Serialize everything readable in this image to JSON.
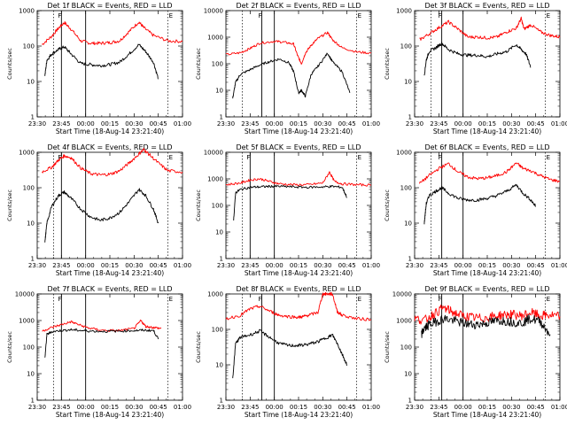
{
  "common": {
    "xlabel": "Start Time (18-Aug-14 23:21:40)",
    "ylabel": "Counts/sec",
    "title_suffix": "BLACK = Events, RED = LLD",
    "colors": {
      "events": "#000000",
      "lld": "#ff0000"
    },
    "marker_labels": [
      "F",
      "E"
    ]
  },
  "chart_data": [
    {
      "type": "line",
      "title": "Det 1f BLACK = Events, RED = LLD",
      "xlabel": "Start Time (18-Aug-14 23:21:40)",
      "ylabel": "Counts/sec",
      "yscale": "log",
      "ylim": [
        1,
        1000
      ],
      "xlim": [
        23.5,
        25.0
      ],
      "xticks": [
        "23:30",
        "23:45",
        "00:00",
        "00:15",
        "00:30",
        "00:45",
        "01:00"
      ],
      "yticks": [
        "1",
        "10",
        "100",
        "1000"
      ],
      "markers": {
        "solid": [
          23.75,
          24.0
        ],
        "dotted": [
          23.67,
          24.85
        ]
      },
      "series": [
        {
          "name": "LLD",
          "color": "#ff0000",
          "x": [
            23.55,
            23.65,
            23.72,
            23.78,
            23.85,
            23.95,
            24.05,
            24.15,
            24.25,
            24.35,
            24.45,
            24.55,
            24.6,
            24.7,
            24.85,
            25.0
          ],
          "y": [
            110,
            190,
            320,
            460,
            300,
            140,
            120,
            120,
            125,
            140,
            260,
            480,
            330,
            200,
            140,
            135
          ]
        },
        {
          "name": "Events",
          "color": "#000000",
          "x": [
            23.58,
            23.6,
            23.65,
            23.72,
            23.78,
            23.85,
            23.95,
            24.05,
            24.15,
            24.25,
            24.35,
            24.45,
            24.55,
            24.62,
            24.7,
            24.75
          ],
          "y": [
            15,
            40,
            60,
            80,
            95,
            60,
            32,
            30,
            28,
            30,
            35,
            60,
            110,
            70,
            35,
            12
          ]
        }
      ]
    },
    {
      "type": "line",
      "title": "Det 2f BLACK = Events, RED = LLD",
      "xlabel": "Start Time (18-Aug-14 23:21:40)",
      "ylabel": "Counts/sec",
      "yscale": "log",
      "ylim": [
        1,
        10000
      ],
      "xlim": [
        23.5,
        25.0
      ],
      "xticks": [
        "23:30",
        "23:45",
        "00:00",
        "00:15",
        "00:30",
        "00:45",
        "01:00"
      ],
      "yticks": [
        "1",
        "10",
        "100",
        "1000",
        "10000"
      ],
      "markers": {
        "solid": [
          23.87,
          24.0
        ],
        "dotted": [
          23.67,
          24.85
        ]
      },
      "series": [
        {
          "name": "LLD",
          "color": "#ff0000",
          "x": [
            23.5,
            23.65,
            23.75,
            23.85,
            24.0,
            24.1,
            24.2,
            24.24,
            24.28,
            24.32,
            24.38,
            24.45,
            24.55,
            24.6,
            24.7,
            24.85,
            25.0
          ],
          "y": [
            220,
            260,
            380,
            600,
            700,
            650,
            550,
            200,
            100,
            250,
            500,
            900,
            1500,
            800,
            400,
            280,
            250
          ]
        },
        {
          "name": "Events",
          "color": "#000000",
          "x": [
            23.57,
            23.6,
            23.65,
            23.75,
            23.85,
            23.95,
            24.05,
            24.15,
            24.2,
            24.25,
            24.28,
            24.32,
            24.38,
            24.45,
            24.55,
            24.6,
            24.7,
            24.78
          ],
          "y": [
            5,
            20,
            40,
            60,
            90,
            120,
            150,
            110,
            50,
            8,
            10,
            6,
            40,
            80,
            250,
            120,
            50,
            8
          ]
        }
      ]
    },
    {
      "type": "line",
      "title": "Det 3f BLACK = Events, RED = LLD",
      "xlabel": "Start Time (18-Aug-14 23:21:40)",
      "ylabel": "Counts/sec",
      "yscale": "log",
      "ylim": [
        1,
        1000
      ],
      "xlim": [
        23.5,
        25.0
      ],
      "xticks": [
        "23:30",
        "23:45",
        "00:00",
        "00:15",
        "00:30",
        "00:45",
        "01:00"
      ],
      "yticks": [
        "1",
        "10",
        "100",
        "1000"
      ],
      "markers": {
        "solid": [
          23.78,
          24.0
        ],
        "dotted": [
          23.67,
          24.85
        ]
      },
      "series": [
        {
          "name": "LLD",
          "color": "#ff0000",
          "x": [
            23.55,
            23.65,
            23.75,
            23.85,
            23.95,
            24.05,
            24.15,
            24.25,
            24.35,
            24.45,
            24.55,
            24.6,
            24.63,
            24.7,
            24.8,
            24.9,
            25.0
          ],
          "y": [
            150,
            220,
            330,
            480,
            300,
            180,
            180,
            170,
            180,
            250,
            320,
            600,
            300,
            400,
            250,
            200,
            180
          ]
        },
        {
          "name": "Events",
          "color": "#000000",
          "x": [
            23.6,
            23.62,
            23.65,
            23.72,
            23.78,
            23.85,
            23.95,
            24.05,
            24.15,
            24.25,
            24.35,
            24.45,
            24.55,
            24.6,
            24.65,
            24.7
          ],
          "y": [
            15,
            40,
            70,
            90,
            120,
            80,
            60,
            55,
            55,
            50,
            60,
            70,
            110,
            80,
            60,
            25
          ]
        }
      ]
    },
    {
      "type": "line",
      "title": "Det 4f BLACK = Events, RED = LLD",
      "xlabel": "Start Time (18-Aug-14 23:21:40)",
      "ylabel": "Counts/sec",
      "yscale": "log",
      "ylim": [
        1,
        1000
      ],
      "xlim": [
        23.5,
        25.0
      ],
      "xticks": [
        "23:30",
        "23:45",
        "00:00",
        "00:15",
        "00:30",
        "00:45",
        "01:00"
      ],
      "yticks": [
        "1",
        "10",
        "100",
        "1000"
      ],
      "markers": {
        "solid": [
          23.75,
          24.0
        ],
        "dotted": [
          23.67,
          24.85
        ]
      },
      "series": [
        {
          "name": "LLD",
          "color": "#ff0000",
          "x": [
            23.55,
            23.65,
            23.72,
            23.78,
            23.85,
            23.95,
            24.05,
            24.15,
            24.25,
            24.35,
            24.45,
            24.55,
            24.6,
            24.65,
            24.75,
            24.85,
            25.0
          ],
          "y": [
            280,
            380,
            600,
            800,
            700,
            360,
            250,
            230,
            240,
            300,
            500,
            900,
            1200,
            900,
            500,
            300,
            280
          ]
        },
        {
          "name": "Events",
          "color": "#000000",
          "x": [
            23.58,
            23.6,
            23.65,
            23.72,
            23.78,
            23.85,
            23.95,
            24.05,
            24.15,
            24.25,
            24.35,
            24.45,
            24.55,
            24.62,
            24.7,
            24.75
          ],
          "y": [
            3,
            10,
            30,
            60,
            75,
            50,
            25,
            15,
            12,
            14,
            20,
            40,
            90,
            60,
            25,
            10
          ]
        }
      ]
    },
    {
      "type": "line",
      "title": "Det 5f BLACK = Events, RED = LLD",
      "xlabel": "Start Time (18-Aug-14 23:21:40)",
      "ylabel": "Counts/sec",
      "yscale": "log",
      "ylim": [
        1,
        10000
      ],
      "xlim": [
        23.5,
        25.0
      ],
      "xticks": [
        "23:30",
        "23:45",
        "00:00",
        "00:15",
        "00:30",
        "00:45",
        "01:00"
      ],
      "yticks": [
        "1",
        "10",
        "100",
        "1000",
        "10000"
      ],
      "markers": {
        "solid": [
          23.75,
          24.0
        ],
        "dotted": [
          23.67,
          24.85
        ]
      },
      "series": [
        {
          "name": "LLD",
          "color": "#ff0000",
          "x": [
            23.5,
            23.65,
            23.75,
            23.85,
            23.95,
            24.05,
            24.2,
            24.35,
            24.5,
            24.57,
            24.62,
            24.7,
            24.85,
            25.0
          ],
          "y": [
            600,
            700,
            900,
            1000,
            800,
            650,
            600,
            600,
            700,
            1800,
            800,
            650,
            600,
            580
          ]
        },
        {
          "name": "Events",
          "color": "#000000",
          "x": [
            23.58,
            23.6,
            23.65,
            23.75,
            23.85,
            23.95,
            24.05,
            24.2,
            24.35,
            24.5,
            24.6,
            24.7,
            24.75
          ],
          "y": [
            30,
            300,
            400,
            480,
            500,
            520,
            520,
            500,
            480,
            500,
            520,
            480,
            200
          ]
        }
      ]
    },
    {
      "type": "line",
      "title": "Det 6f BLACK = Events, RED = LLD",
      "xlabel": "Start Time (18-Aug-14 23:21:40)",
      "ylabel": "Counts/sec",
      "yscale": "log",
      "ylim": [
        1,
        1000
      ],
      "xlim": [
        23.5,
        25.0
      ],
      "xticks": [
        "23:30",
        "23:45",
        "00:00",
        "00:15",
        "00:30",
        "00:45",
        "01:00"
      ],
      "yticks": [
        "1",
        "10",
        "100",
        "1000"
      ],
      "markers": {
        "solid": [
          23.78,
          24.0
        ],
        "dotted": [
          23.67,
          24.85
        ]
      },
      "series": [
        {
          "name": "LLD",
          "color": "#ff0000",
          "x": [
            23.55,
            23.65,
            23.75,
            23.85,
            23.95,
            24.05,
            24.15,
            24.25,
            24.35,
            24.45,
            24.55,
            24.62,
            24.7,
            24.8,
            24.9,
            25.0
          ],
          "y": [
            130,
            220,
            350,
            480,
            280,
            200,
            180,
            190,
            220,
            280,
            500,
            350,
            300,
            220,
            170,
            150
          ]
        },
        {
          "name": "Events",
          "color": "#000000",
          "x": [
            23.6,
            23.62,
            23.65,
            23.72,
            23.78,
            23.85,
            23.95,
            24.05,
            24.15,
            24.25,
            24.35,
            24.45,
            24.55,
            24.62,
            24.7,
            24.75
          ],
          "y": [
            10,
            35,
            60,
            80,
            100,
            70,
            50,
            45,
            45,
            50,
            60,
            80,
            120,
            70,
            45,
            30
          ]
        }
      ]
    },
    {
      "type": "line",
      "title": "Det 7f BLACK = Events, RED = LLD",
      "xlabel": "Start Time (18-Aug-14 23:21:40)",
      "ylabel": "Counts/sec",
      "yscale": "log",
      "ylim": [
        1,
        10000
      ],
      "xlim": [
        23.5,
        25.0
      ],
      "xticks": [
        "23:30",
        "23:45",
        "00:00",
        "00:15",
        "00:30",
        "00:45",
        "01:00"
      ],
      "yticks": [
        "1",
        "10",
        "100",
        "1000",
        "10000"
      ],
      "markers": {
        "solid": [
          23.75,
          24.0
        ],
        "dotted": [
          23.67,
          24.85
        ]
      },
      "series": [
        {
          "name": "LLD",
          "color": "#ff0000",
          "x": [
            23.55,
            23.65,
            23.75,
            23.85,
            23.95,
            24.05,
            24.2,
            24.35,
            24.5,
            24.57,
            24.62,
            24.7,
            24.78
          ],
          "y": [
            400,
            550,
            700,
            900,
            650,
            500,
            420,
            420,
            500,
            1000,
            600,
            550,
            500
          ]
        },
        {
          "name": "Events",
          "color": "#000000",
          "x": [
            23.58,
            23.6,
            23.65,
            23.75,
            23.85,
            23.95,
            24.05,
            24.2,
            24.35,
            24.5,
            24.6,
            24.7,
            24.75
          ],
          "y": [
            40,
            300,
            380,
            420,
            450,
            420,
            400,
            390,
            400,
            420,
            430,
            420,
            200
          ]
        }
      ]
    },
    {
      "type": "line",
      "title": "Det 8f BLACK = Events, RED = LLD",
      "xlabel": "Start Time (18-Aug-14 23:21:40)",
      "ylabel": "Counts/sec",
      "yscale": "log",
      "ylim": [
        1,
        1000
      ],
      "xlim": [
        23.5,
        25.0
      ],
      "xticks": [
        "23:30",
        "23:45",
        "00:00",
        "00:15",
        "00:30",
        "00:45",
        "01:00"
      ],
      "yticks": [
        "1",
        "10",
        "100",
        "1000"
      ],
      "markers": {
        "solid": [
          23.87,
          24.0
        ],
        "dotted": [
          23.67,
          24.85
        ]
      },
      "series": [
        {
          "name": "LLD",
          "color": "#ff0000",
          "x": [
            23.5,
            23.65,
            23.75,
            23.85,
            23.95,
            24.05,
            24.15,
            24.25,
            24.3,
            24.35,
            24.45,
            24.5,
            24.55,
            24.6,
            24.65,
            24.7,
            24.85,
            25.0
          ],
          "y": [
            200,
            250,
            380,
            450,
            330,
            250,
            230,
            220,
            230,
            250,
            300,
            1000,
            1000,
            1000,
            320,
            250,
            200,
            190
          ]
        },
        {
          "name": "Events",
          "color": "#000000",
          "x": [
            23.57,
            23.6,
            23.65,
            23.75,
            23.85,
            23.95,
            24.05,
            24.15,
            24.25,
            24.35,
            24.45,
            24.55,
            24.6,
            24.65,
            24.7,
            24.75
          ],
          "y": [
            4,
            40,
            60,
            70,
            90,
            60,
            40,
            35,
            35,
            38,
            45,
            60,
            70,
            40,
            20,
            10
          ]
        }
      ]
    },
    {
      "type": "line",
      "title": "Det 9f BLACK = Events, RED = LLD",
      "xlabel": "Start Time (18-Aug-14 23:21:40)",
      "ylabel": "Counts/sec",
      "yscale": "log",
      "ylim": [
        1,
        10000
      ],
      "xlim": [
        23.5,
        25.0
      ],
      "xticks": [
        "23:30",
        "23:45",
        "00:00",
        "00:15",
        "00:30",
        "00:45",
        "01:00"
      ],
      "yticks": [
        "1",
        "10",
        "100",
        "1000",
        "10000"
      ],
      "markers": {
        "solid": [
          23.78,
          24.0
        ],
        "dotted": [
          23.67,
          24.85
        ]
      },
      "series": [
        {
          "name": "LLD",
          "color": "#ff0000",
          "x": [
            23.5,
            23.6,
            23.7,
            23.8,
            23.9,
            24.0,
            24.1,
            24.2,
            24.3,
            24.4,
            24.5,
            24.6,
            24.7,
            24.8,
            24.9,
            25.0
          ],
          "y": [
            1200,
            1000,
            1800,
            3000,
            2000,
            1500,
            1300,
            1200,
            1400,
            1600,
            1700,
            1500,
            2000,
            1500,
            1600,
            1400
          ]
        },
        {
          "name": "Events",
          "color": "#000000",
          "x": [
            23.57,
            23.6,
            23.65,
            23.72,
            23.8,
            23.9,
            24.0,
            24.1,
            24.2,
            24.3,
            24.4,
            24.5,
            24.6,
            24.7,
            24.8,
            24.9
          ],
          "y": [
            300,
            500,
            700,
            900,
            1200,
            1000,
            800,
            700,
            750,
            900,
            1000,
            900,
            800,
            1200,
            900,
            300
          ]
        }
      ]
    }
  ]
}
